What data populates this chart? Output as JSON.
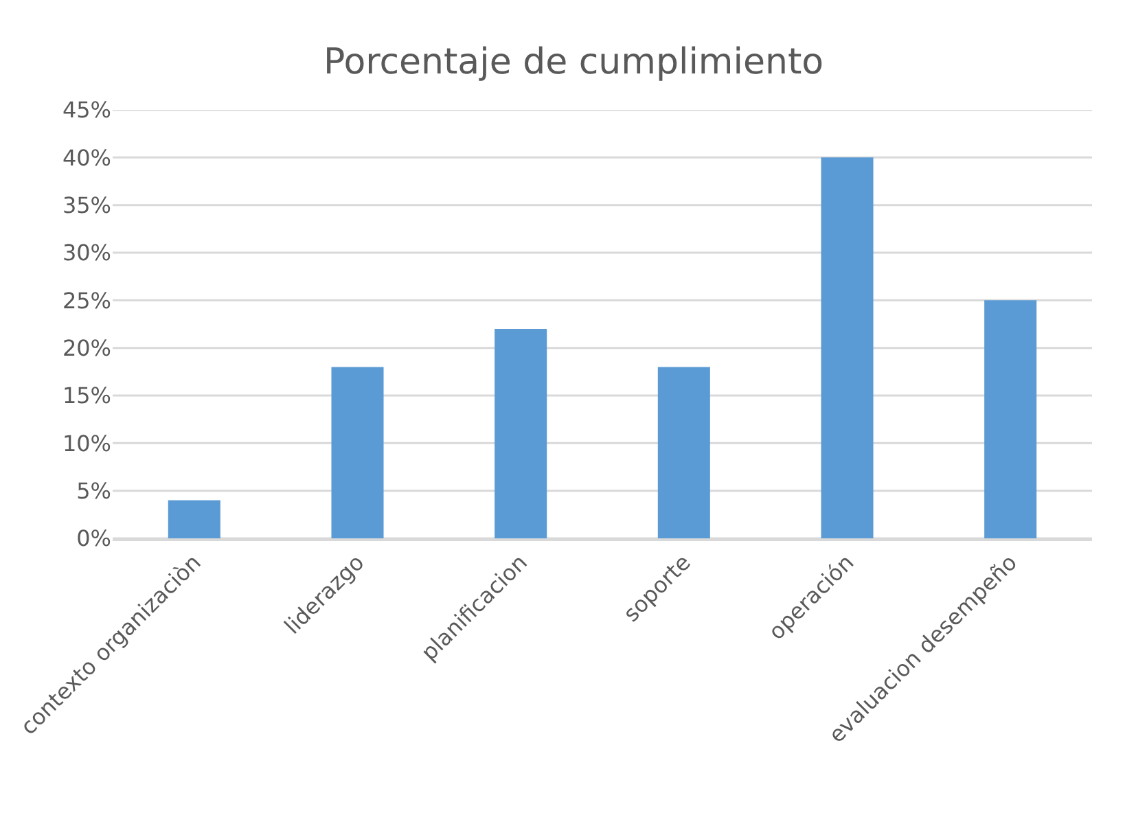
{
  "chart_data": {
    "type": "bar",
    "title": "Porcentaje de cumplimiento",
    "categories": [
      "contexto organizaciòn",
      "liderazgo",
      "planificacion",
      "soporte",
      "operación",
      "evaluacion desempeño"
    ],
    "values": [
      4,
      18,
      22,
      18,
      40,
      25
    ],
    "color": "#5b9bd5",
    "ylim": [
      0,
      45
    ],
    "yticks": [
      {
        "value": 0,
        "label": "0%"
      },
      {
        "value": 5,
        "label": "5%"
      },
      {
        "value": 10,
        "label": "10%"
      },
      {
        "value": 15,
        "label": "15%"
      },
      {
        "value": 20,
        "label": "20%"
      },
      {
        "value": 25,
        "label": "25%"
      },
      {
        "value": 30,
        "label": "30%"
      },
      {
        "value": 35,
        "label": "35%"
      },
      {
        "value": 40,
        "label": "40%"
      },
      {
        "value": 45,
        "label": "45%"
      }
    ],
    "grid": "y"
  }
}
